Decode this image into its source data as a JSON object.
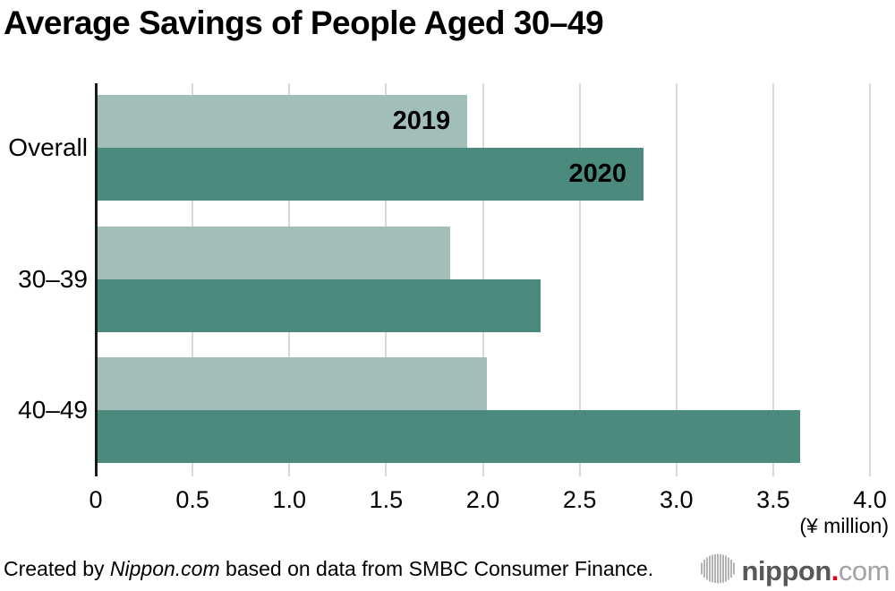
{
  "title": "Average Savings of People Aged 30–49",
  "chart_data": {
    "type": "bar",
    "orientation": "horizontal",
    "title": "Average Savings of People Aged 30–49",
    "categories": [
      "Overall",
      "30–39",
      "40–49"
    ],
    "series": [
      {
        "name": "2019",
        "color": "#a2beb9",
        "values": [
          1.92,
          1.83,
          2.02
        ]
      },
      {
        "name": "2020",
        "color": "#4a8b7d",
        "values": [
          2.83,
          2.3,
          3.64
        ]
      }
    ],
    "xlim": [
      0,
      4
    ],
    "xticks": [
      {
        "value": 0,
        "label": "0"
      },
      {
        "value": 0.5,
        "label": "0.5"
      },
      {
        "value": 1,
        "label": "1.0"
      },
      {
        "value": 1.5,
        "label": "1.5"
      },
      {
        "value": 2,
        "label": "2.0"
      },
      {
        "value": 2.5,
        "label": "2.5"
      },
      {
        "value": 3,
        "label": "3.0"
      },
      {
        "value": 3.5,
        "label": "3.5"
      },
      {
        "value": 4,
        "label": "4.0"
      }
    ],
    "x_unit_label": "(¥ million)",
    "grid": true,
    "gridline_color": "#d9d9d9",
    "axis_color": "#1a1a1a",
    "series_labels_shown_on_first_group_only": true
  },
  "footer": {
    "credit_prefix": "Created by ",
    "credit_source": "Nippon.com",
    "credit_suffix": " based on data from SMBC Consumer Finance.",
    "logo": {
      "brand": "nippon",
      "dot": ".",
      "tld": "com",
      "brand_color": "#58575a",
      "dot_color": "#e60012",
      "tld_color": "#a3a3a5",
      "icon": "soundwave-circle-icon",
      "icon_color": "#b3b3b5"
    }
  }
}
